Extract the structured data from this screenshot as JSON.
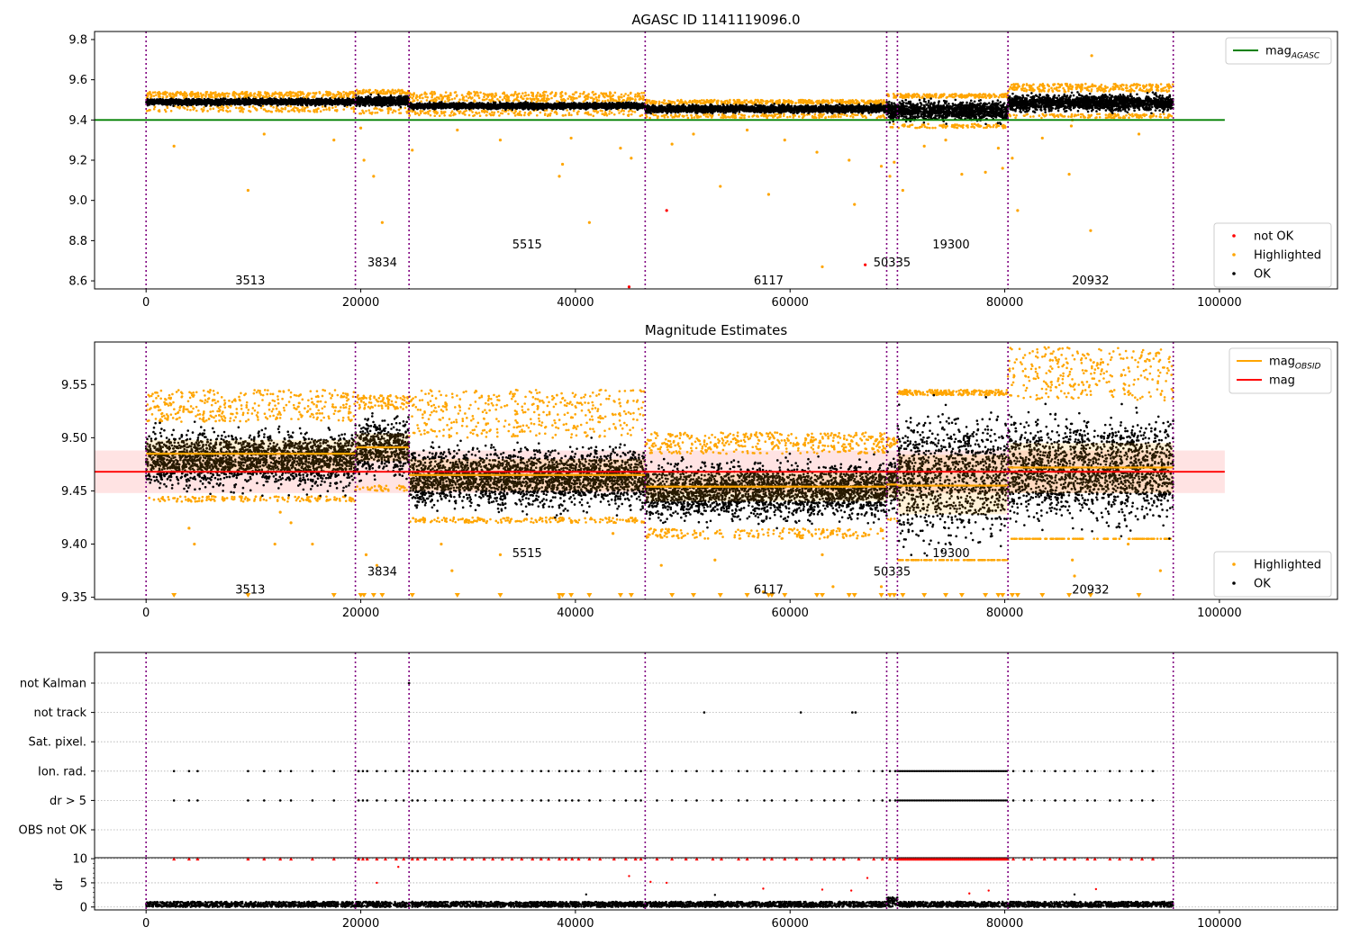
{
  "colors": {
    "ok": "#000000",
    "highlighted": "#ffa500",
    "not_ok": "#ff0000",
    "agasc_line": "#008000",
    "obsid_line": "#ffa500",
    "mean_line": "#ff0000",
    "obs_boundary": "#800080",
    "mean_band": "#ffc0c0",
    "grid": "#b0b0b0"
  },
  "chart_data": [
    {
      "id": "agasc",
      "type": "scatter",
      "title": "AGASC ID 1141119096.0",
      "xlim": [
        -4800,
        111000
      ],
      "ylim": [
        8.56,
        9.84
      ],
      "xticks": [
        0,
        20000,
        40000,
        60000,
        80000,
        100000
      ],
      "yticks": [
        8.6,
        8.8,
        9.0,
        9.2,
        9.4,
        9.6,
        9.8
      ],
      "obs_boundaries": [
        0,
        19500,
        24500,
        46500,
        69000,
        70000,
        80300,
        95700
      ],
      "mag_agasc": 9.4,
      "mag_agasc_xrange": [
        -4800,
        100500
      ],
      "segments": [
        {
          "x0": 0,
          "x1": 19500,
          "ok_low": 9.47,
          "ok_high": 9.51,
          "hl_low": 9.44,
          "hl_high": 9.54
        },
        {
          "x0": 19500,
          "x1": 24500,
          "ok_low": 9.46,
          "ok_high": 9.53,
          "hl_low": 9.43,
          "hl_high": 9.55
        },
        {
          "x0": 24500,
          "x1": 46500,
          "ok_low": 9.45,
          "ok_high": 9.49,
          "hl_low": 9.42,
          "hl_high": 9.54
        },
        {
          "x0": 46500,
          "x1": 69000,
          "ok_low": 9.43,
          "ok_high": 9.48,
          "hl_low": 9.41,
          "hl_high": 9.5
        },
        {
          "x0": 69000,
          "x1": 80300,
          "ok_low": 9.38,
          "ok_high": 9.51,
          "hl_low": 9.36,
          "hl_high": 9.53
        },
        {
          "x0": 80300,
          "x1": 95700,
          "ok_low": 9.43,
          "ok_high": 9.54,
          "hl_low": 9.41,
          "hl_high": 9.58
        }
      ],
      "outliers_highlighted": [
        [
          2600,
          9.27
        ],
        [
          9500,
          9.05
        ],
        [
          11000,
          9.33
        ],
        [
          17500,
          9.3
        ],
        [
          20000,
          9.36
        ],
        [
          20300,
          9.2
        ],
        [
          21200,
          9.12
        ],
        [
          22000,
          8.89
        ],
        [
          24800,
          9.25
        ],
        [
          29000,
          9.35
        ],
        [
          33000,
          9.3
        ],
        [
          38500,
          9.12
        ],
        [
          38800,
          9.18
        ],
        [
          39600,
          9.31
        ],
        [
          41300,
          8.89
        ],
        [
          44200,
          9.26
        ],
        [
          45200,
          9.21
        ],
        [
          49000,
          9.28
        ],
        [
          51000,
          9.33
        ],
        [
          53500,
          9.07
        ],
        [
          56000,
          9.35
        ],
        [
          58000,
          9.03
        ],
        [
          59500,
          9.3
        ],
        [
          62500,
          9.24
        ],
        [
          63000,
          8.67
        ],
        [
          65500,
          9.2
        ],
        [
          66000,
          8.98
        ],
        [
          68500,
          9.17
        ],
        [
          69300,
          9.12
        ],
        [
          69700,
          9.19
        ],
        [
          70500,
          9.05
        ],
        [
          72500,
          9.27
        ],
        [
          74500,
          9.3
        ],
        [
          76000,
          9.13
        ],
        [
          78200,
          9.14
        ],
        [
          79400,
          9.26
        ],
        [
          79800,
          9.16
        ],
        [
          80700,
          9.21
        ],
        [
          81200,
          8.95
        ],
        [
          83500,
          9.31
        ],
        [
          86000,
          9.13
        ],
        [
          86200,
          9.37
        ],
        [
          86300,
          9.4
        ],
        [
          88000,
          8.85
        ],
        [
          88100,
          9.72
        ],
        [
          92500,
          9.33
        ]
      ],
      "outliers_not_ok": [
        [
          48500,
          8.95
        ],
        [
          67000,
          8.68
        ],
        [
          45000,
          8.57
        ]
      ],
      "obs_labels": [
        {
          "text": "3513",
          "x": 9700,
          "y": 8.6
        },
        {
          "text": "3834",
          "x": 22000,
          "y": 8.69
        },
        {
          "text": "5515",
          "x": 35500,
          "y": 8.78
        },
        {
          "text": "6117",
          "x": 58000,
          "y": 8.6
        },
        {
          "text": "50335",
          "x": 69500,
          "y": 8.69
        },
        {
          "text": "19300",
          "x": 75000,
          "y": 8.78
        },
        {
          "text": "20932",
          "x": 88000,
          "y": 8.6
        }
      ],
      "legend_top": [
        {
          "label": "mag",
          "subscript": "AGASC",
          "color": "#008000",
          "kind": "line"
        }
      ],
      "legend_bottom": [
        {
          "label": "not OK",
          "color": "#ff0000",
          "kind": "dot"
        },
        {
          "label": "Highlighted",
          "color": "#ffa500",
          "kind": "dot"
        },
        {
          "label": "OK",
          "color": "#000000",
          "kind": "dot"
        }
      ]
    },
    {
      "id": "estimates",
      "type": "scatter",
      "title": "Magnitude Estimates",
      "xlim": [
        -4800,
        111000
      ],
      "ylim": [
        9.348,
        9.59
      ],
      "xticks": [
        0,
        20000,
        40000,
        60000,
        80000,
        100000
      ],
      "yticks": [
        9.35,
        9.4,
        9.45,
        9.5,
        9.55
      ],
      "obs_boundaries": [
        0,
        19500,
        24500,
        46500,
        69000,
        70000,
        80300,
        95700
      ],
      "mag_mean": 9.468,
      "mag_band": [
        9.448,
        9.488
      ],
      "mag_band_xrange": [
        -4800,
        100500
      ],
      "obsid_mags": [
        {
          "x0": 0,
          "x1": 19500,
          "mag": 9.485,
          "band": [
            9.468,
            9.498
          ]
        },
        {
          "x0": 19500,
          "x1": 24500,
          "mag": 9.491,
          "band": [
            9.478,
            9.504
          ]
        },
        {
          "x0": 24500,
          "x1": 46500,
          "mag": 9.465,
          "band": [
            9.45,
            9.48
          ]
        },
        {
          "x0": 46500,
          "x1": 69000,
          "mag": 9.454,
          "band": [
            9.44,
            9.468
          ]
        },
        {
          "x0": 69000,
          "x1": 70000,
          "mag": 9.456,
          "band": [
            9.443,
            9.47
          ]
        },
        {
          "x0": 70000,
          "x1": 80300,
          "mag": 9.455,
          "band": [
            9.428,
            9.484
          ]
        },
        {
          "x0": 80300,
          "x1": 95700,
          "mag": 9.472,
          "band": [
            9.448,
            9.495
          ]
        }
      ],
      "segments": [
        {
          "x0": 0,
          "x1": 19500,
          "ok_low": 9.445,
          "ok_high": 9.515,
          "hl_low": 9.44,
          "hl_high": 9.545
        },
        {
          "x0": 19500,
          "x1": 24500,
          "ok_low": 9.455,
          "ok_high": 9.527,
          "hl_low": 9.45,
          "hl_high": 9.54
        },
        {
          "x0": 24500,
          "x1": 46500,
          "ok_low": 9.425,
          "ok_high": 9.5,
          "hl_low": 9.42,
          "hl_high": 9.545
        },
        {
          "x0": 46500,
          "x1": 69000,
          "ok_low": 9.415,
          "ok_high": 9.485,
          "hl_low": 9.405,
          "hl_high": 9.505
        },
        {
          "x0": 69000,
          "x1": 70000,
          "ok_low": 9.425,
          "ok_high": 9.49,
          "hl_low": 9.42,
          "hl_high": 9.5
        },
        {
          "x0": 70000,
          "x1": 80300,
          "ok_low": 9.385,
          "ok_high": 9.54,
          "hl_low": 9.385,
          "hl_high": 9.545
        },
        {
          "x0": 80300,
          "x1": 95700,
          "ok_low": 9.405,
          "ok_high": 9.535,
          "hl_low": 9.405,
          "hl_high": 9.585
        }
      ],
      "outliers_highlighted": [
        [
          4000,
          9.415
        ],
        [
          4500,
          9.4
        ],
        [
          12000,
          9.4
        ],
        [
          12500,
          9.43
        ],
        [
          13500,
          9.42
        ],
        [
          15500,
          9.4
        ],
        [
          20500,
          9.39
        ],
        [
          21500,
          9.38
        ],
        [
          27500,
          9.4
        ],
        [
          28500,
          9.375
        ],
        [
          33000,
          9.39
        ],
        [
          38500,
          9.35
        ],
        [
          43500,
          9.41
        ],
        [
          48000,
          9.38
        ],
        [
          53000,
          9.385
        ],
        [
          57500,
          9.355
        ],
        [
          63000,
          9.39
        ],
        [
          64000,
          9.36
        ],
        [
          68500,
          9.36
        ],
        [
          86300,
          9.385
        ],
        [
          86500,
          9.37
        ],
        [
          91500,
          9.4
        ],
        [
          94500,
          9.375
        ]
      ],
      "triangles_x": [
        2600,
        9500,
        17500,
        20000,
        20300,
        21200,
        22000,
        24800,
        29000,
        33000,
        38500,
        38800,
        39600,
        41300,
        44200,
        45200,
        49000,
        51000,
        53500,
        56000,
        58000,
        58300,
        59500,
        62500,
        63000,
        65500,
        66000,
        68500,
        69300,
        69700,
        70500,
        72500,
        74500,
        76000,
        78200,
        79400,
        79800,
        80700,
        81200,
        83500,
        86000,
        88000,
        92500
      ],
      "obs_labels": [
        {
          "text": "3513",
          "x": 9700,
          "y": 9.357
        },
        {
          "text": "3834",
          "x": 22000,
          "y": 9.374
        },
        {
          "text": "5515",
          "x": 35500,
          "y": 9.391
        },
        {
          "text": "6117",
          "x": 58000,
          "y": 9.357
        },
        {
          "text": "50335",
          "x": 69500,
          "y": 9.374
        },
        {
          "text": "19300",
          "x": 75000,
          "y": 9.391
        },
        {
          "text": "20932",
          "x": 88000,
          "y": 9.357
        }
      ],
      "legend_top": [
        {
          "label": "mag",
          "subscript": "OBSID",
          "color": "#ffa500",
          "kind": "line"
        },
        {
          "label": "mag",
          "subscript": "",
          "color": "#ff0000",
          "kind": "line"
        }
      ],
      "legend_bottom": [
        {
          "label": "Highlighted",
          "color": "#ffa500",
          "kind": "dot"
        },
        {
          "label": "OK",
          "color": "#000000",
          "kind": "dot"
        }
      ]
    },
    {
      "id": "flags",
      "type": "scatter",
      "xlim": [
        -4800,
        111000
      ],
      "xticks": [
        0,
        20000,
        40000,
        60000,
        80000,
        100000
      ],
      "obs_boundaries": [
        0,
        19500,
        24500,
        46500,
        69000,
        70000,
        80300,
        95700
      ],
      "flag_rows": [
        "not Kalman",
        "not track",
        "Sat. pixel.",
        "Ion. rad.",
        "dr > 5",
        "OBS not OK"
      ],
      "flag_points": {
        "not Kalman": [
          24500
        ],
        "not track": [
          52000,
          61000,
          65800,
          66100
        ],
        "Sat. pixel.": [],
        "Ion. rad.": [
          2600,
          4000,
          4800,
          9500,
          11000,
          12500,
          13500,
          15500,
          17500,
          19800,
          20200,
          20600,
          21500,
          22300,
          23300,
          24000,
          24800,
          25300,
          26000,
          27000,
          27800,
          28500,
          29700,
          30400,
          31500,
          32300,
          33200,
          34100,
          35000,
          36000,
          36800,
          37500,
          38500,
          39100,
          39700,
          40300,
          41300,
          42300,
          43600,
          44700,
          45600,
          46100,
          47600,
          49000,
          50300,
          51300,
          52800,
          53600,
          55200,
          56000,
          57600,
          58300,
          59500,
          60600,
          62000,
          63200,
          64100,
          65000,
          66400,
          67800,
          68600,
          69300,
          69800,
          80800,
          81800,
          82500,
          83700,
          84700,
          85600,
          86500,
          87700,
          88400,
          89800,
          90700,
          91800,
          92800,
          93800
        ],
        "dr > 5": [
          2600,
          4000,
          4800,
          9500,
          11000,
          12500,
          13500,
          15500,
          17500,
          19800,
          20200,
          20600,
          21500,
          22300,
          23300,
          24000,
          24800,
          25300,
          26000,
          27000,
          27800,
          28500,
          29700,
          30400,
          31500,
          32300,
          33200,
          34100,
          35000,
          36000,
          36800,
          37500,
          38500,
          39100,
          39700,
          40300,
          41300,
          42300,
          43600,
          44700,
          45600,
          46100,
          47600,
          49000,
          50300,
          51300,
          52800,
          53600,
          55200,
          56000,
          57600,
          58300,
          59500,
          60600,
          62000,
          63200,
          64100,
          65000,
          66400,
          67800,
          68600,
          69300,
          69800,
          80800,
          81800,
          82500,
          83700,
          84700,
          85600,
          86500,
          87700,
          88400,
          89800,
          90700,
          91800,
          92800,
          93800
        ],
        "OBS not OK": []
      },
      "dense_flag_range": [
        70000,
        80300
      ]
    },
    {
      "id": "dr",
      "type": "scatter",
      "ylabel": "dr",
      "xlim": [
        -4800,
        111000
      ],
      "ylim": [
        -0.6,
        10.2
      ],
      "xticks": [
        0,
        20000,
        40000,
        60000,
        80000,
        100000
      ],
      "xtick_labels": [
        "0",
        "20000",
        "40000",
        "60000",
        "80000",
        "100000"
      ],
      "yticks": [
        0,
        5,
        10
      ],
      "obs_boundaries": [
        0,
        19500,
        24500,
        46500,
        69000,
        70000,
        80300,
        95700
      ],
      "capped_value": 10,
      "ok_band": [
        0,
        1.1
      ],
      "ok_band_high_segment": {
        "x0": 69000,
        "x1": 70000,
        "high": 2.0
      },
      "capped_x": [
        2600,
        4000,
        4800,
        9500,
        11000,
        12500,
        13500,
        15500,
        17500,
        19800,
        20200,
        20600,
        21500,
        22300,
        23300,
        24000,
        24800,
        25300,
        26000,
        27000,
        27800,
        28500,
        29700,
        30400,
        31500,
        32300,
        33200,
        34100,
        35000,
        36000,
        36800,
        37500,
        38500,
        39100,
        39700,
        40300,
        41300,
        42300,
        43600,
        44700,
        45600,
        46100,
        47600,
        49000,
        50300,
        51300,
        52800,
        53600,
        55200,
        56000,
        57600,
        58300,
        59500,
        60600,
        62000,
        63200,
        64100,
        65000,
        66400,
        67800,
        68600,
        69300,
        69800,
        80800,
        81800,
        82500,
        83700,
        84700,
        85600,
        86500,
        87700,
        88400,
        89800,
        90700,
        91800,
        92800,
        93800
      ],
      "mid_red_points": [
        [
          21500,
          5.0
        ],
        [
          23500,
          8.3
        ],
        [
          45000,
          6.4
        ],
        [
          47000,
          5.2
        ],
        [
          48500,
          5.0
        ],
        [
          57500,
          3.8
        ],
        [
          63000,
          3.6
        ],
        [
          65700,
          3.4
        ],
        [
          67200,
          6.0
        ],
        [
          76700,
          2.8
        ],
        [
          78500,
          3.4
        ],
        [
          88500,
          3.7
        ]
      ],
      "mid_black_points": [
        [
          41000,
          2.6
        ],
        [
          86500,
          2.6
        ],
        [
          53000,
          2.5
        ]
      ]
    }
  ]
}
